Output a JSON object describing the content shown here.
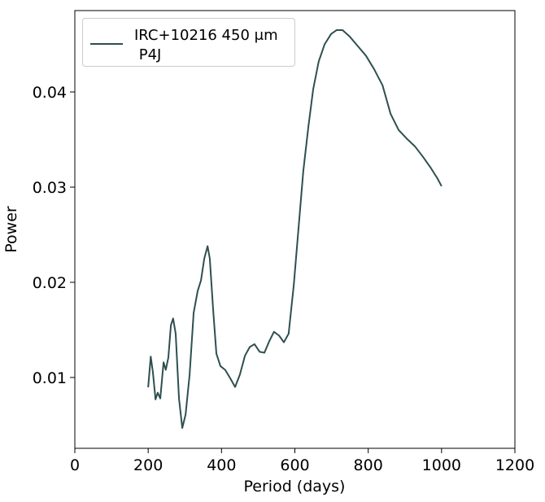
{
  "chart_data": {
    "type": "line",
    "x_label": "Period (days)",
    "y_label": "Power",
    "xlim": [
      0,
      1200
    ],
    "xticks": [
      0,
      200,
      400,
      600,
      800,
      1000,
      1200
    ],
    "ylim": [
      0.00256,
      0.04855
    ],
    "yticks": [
      0.01,
      0.02,
      0.03,
      0.04
    ],
    "legend": "upper left",
    "x": [
      200,
      207,
      213,
      220,
      226,
      233,
      242,
      248,
      255,
      262,
      268,
      275,
      284,
      293,
      302,
      313,
      324,
      335,
      344,
      353,
      362,
      368,
      377,
      386,
      397,
      410,
      424,
      437,
      450,
      464,
      477,
      490,
      504,
      517,
      530,
      543,
      557,
      570,
      583,
      597,
      610,
      623,
      637,
      650,
      665,
      681,
      699,
      714,
      730,
      750,
      772,
      794,
      816,
      839,
      861,
      883,
      905,
      927,
      949,
      971,
      989,
      1000
    ],
    "series": [
      {
        "name": "IRC+10216 450 μm\n P4J",
        "color": "#2f4f4f",
        "values": [
          0.00897,
          0.0122,
          0.0105,
          0.0077,
          0.0084,
          0.0078,
          0.0116,
          0.0108,
          0.0121,
          0.0155,
          0.0162,
          0.0146,
          0.0078,
          0.0047,
          0.0061,
          0.0103,
          0.0168,
          0.0191,
          0.0202,
          0.0225,
          0.0238,
          0.0225,
          0.0172,
          0.0125,
          0.0112,
          0.0108,
          0.0099,
          0.009,
          0.0103,
          0.0123,
          0.0132,
          0.0135,
          0.0127,
          0.0126,
          0.0138,
          0.0148,
          0.0144,
          0.0137,
          0.0146,
          0.0197,
          0.0257,
          0.0317,
          0.0364,
          0.0403,
          0.0432,
          0.045,
          0.0461,
          0.0465,
          0.0465,
          0.0458,
          0.0448,
          0.0438,
          0.0424,
          0.0407,
          0.0377,
          0.036,
          0.0351,
          0.0343,
          0.0332,
          0.032,
          0.0309,
          0.0301
        ]
      }
    ]
  }
}
